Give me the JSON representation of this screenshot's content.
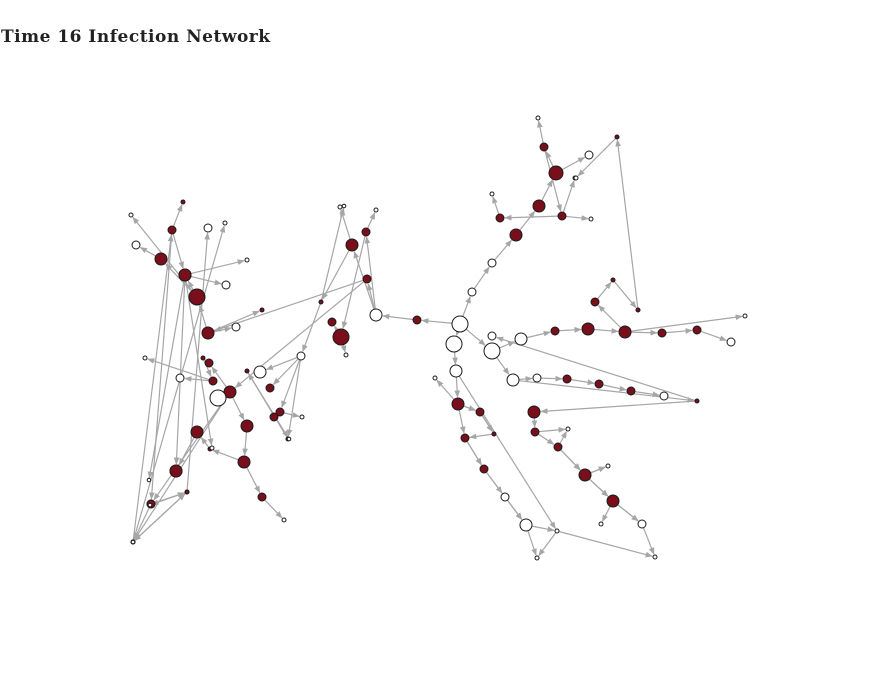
{
  "title": "Time 16 Infection Network",
  "colors": {
    "infected": "#7a0f1c",
    "susceptible": "#ffffff",
    "stroke": "#1a1a1a",
    "edge": "#a6a6a6"
  },
  "chart_data": {
    "type": "network",
    "node_states": [
      "infected",
      "susceptible"
    ],
    "edges": [
      [
        "c1",
        "c2"
      ],
      [
        "c1",
        "c3"
      ],
      [
        "c1",
        "c4"
      ],
      [
        "c1",
        "c5"
      ],
      [
        "c2",
        "L1"
      ],
      [
        "L1",
        "L2"
      ],
      [
        "L1",
        "L3"
      ],
      [
        "L1",
        "L4"
      ],
      [
        "L4",
        "L5"
      ],
      [
        "L4",
        "L6"
      ],
      [
        "L6",
        "L7"
      ],
      [
        "L6",
        "L8"
      ],
      [
        "L3",
        "L9"
      ],
      [
        "L3",
        "L10"
      ],
      [
        "L10",
        "L11"
      ],
      [
        "L10",
        "L12"
      ],
      [
        "L12",
        "L13"
      ],
      [
        "L12",
        "L14"
      ],
      [
        "L12",
        "L15"
      ],
      [
        "L15",
        "L16"
      ],
      [
        "L15",
        "L17"
      ],
      [
        "L12",
        "L18"
      ],
      [
        "L18",
        "L19"
      ],
      [
        "L19",
        "L20"
      ],
      [
        "L2",
        "L21"
      ],
      [
        "L21",
        "L22"
      ],
      [
        "L21",
        "L23"
      ],
      [
        "L21",
        "L24"
      ],
      [
        "L24",
        "L25"
      ],
      [
        "L25",
        "L26"
      ],
      [
        "L25",
        "L27"
      ],
      [
        "L24",
        "L28"
      ],
      [
        "L28",
        "L29"
      ],
      [
        "L24",
        "L30"
      ],
      [
        "L2",
        "L31"
      ],
      [
        "L31",
        "L32"
      ],
      [
        "L31",
        "L33"
      ],
      [
        "L33",
        "L34"
      ],
      [
        "L34",
        "L35"
      ],
      [
        "L35",
        "L36"
      ],
      [
        "L35",
        "L37"
      ],
      [
        "L31",
        "L38"
      ],
      [
        "L38",
        "L39"
      ],
      [
        "L39",
        "L40"
      ],
      [
        "L40",
        "L41"
      ],
      [
        "L39",
        "L42"
      ],
      [
        "L42",
        "L43"
      ],
      [
        "L43",
        "L44"
      ],
      [
        "L31",
        "L45"
      ],
      [
        "L31",
        "L46"
      ],
      [
        "L46",
        "L47"
      ],
      [
        "L47",
        "L48"
      ],
      [
        "L46",
        "L49"
      ],
      [
        "L46",
        "L50"
      ],
      [
        "L50",
        "L51"
      ],
      [
        "L50",
        "L52"
      ],
      [
        "L52",
        "L53"
      ],
      [
        "L52",
        "L54"
      ],
      [
        "L52",
        "L55"
      ],
      [
        "L50",
        "L56"
      ],
      [
        "L56",
        "L57"
      ],
      [
        "L56",
        "L58"
      ],
      [
        "L58",
        "L59"
      ],
      [
        "L58",
        "L60"
      ],
      [
        "c3",
        "R1"
      ],
      [
        "R1",
        "R2"
      ],
      [
        "R2",
        "R3"
      ],
      [
        "R3",
        "R4"
      ],
      [
        "R4",
        "R5"
      ],
      [
        "R4",
        "R6"
      ],
      [
        "R6",
        "R7"
      ],
      [
        "R6",
        "R8"
      ],
      [
        "R8",
        "R9"
      ],
      [
        "R8",
        "R10"
      ],
      [
        "R8",
        "R11"
      ],
      [
        "R11",
        "R12"
      ],
      [
        "c5",
        "R13"
      ],
      [
        "R13",
        "R14"
      ],
      [
        "R14",
        "R15"
      ],
      [
        "R15",
        "R16"
      ],
      [
        "R16",
        "R17"
      ],
      [
        "R17",
        "R18"
      ],
      [
        "R18",
        "R19"
      ],
      [
        "R16",
        "R20"
      ],
      [
        "R16",
        "R21"
      ],
      [
        "R21",
        "R22"
      ],
      [
        "R22",
        "R23"
      ],
      [
        "R23",
        "R24"
      ],
      [
        "R24",
        "R25"
      ],
      [
        "c5",
        "R26"
      ],
      [
        "R26",
        "R27"
      ],
      [
        "R27",
        "R28"
      ],
      [
        "R28",
        "R29"
      ],
      [
        "R29",
        "R30"
      ],
      [
        "R30",
        "R31"
      ],
      [
        "R26",
        "R32"
      ],
      [
        "R32",
        "R33"
      ],
      [
        "R32",
        "R34"
      ],
      [
        "R34",
        "R35"
      ],
      [
        "R35",
        "R36"
      ],
      [
        "R36",
        "R37"
      ],
      [
        "R36",
        "R38"
      ],
      [
        "R38",
        "R39"
      ],
      [
        "R38",
        "R40"
      ],
      [
        "R40",
        "R41"
      ],
      [
        "c4",
        "R42"
      ],
      [
        "R42",
        "R43"
      ],
      [
        "R43",
        "R44"
      ],
      [
        "R43",
        "R45"
      ],
      [
        "R45",
        "R46"
      ],
      [
        "R46",
        "R47"
      ],
      [
        "R47",
        "R48"
      ],
      [
        "R48",
        "R49"
      ],
      [
        "R48",
        "R50"
      ],
      [
        "R42",
        "R51"
      ],
      [
        "R51",
        "R52"
      ],
      [
        "R51",
        "R53"
      ]
    ],
    "nodes": [
      {
        "id": "c1",
        "state": "susceptible"
      },
      {
        "id": "c2",
        "state": "infected"
      },
      {
        "id": "c3",
        "state": "susceptible"
      },
      {
        "id": "c4",
        "state": "susceptible"
      },
      {
        "id": "c5",
        "state": "susceptible"
      },
      {
        "id": "L1",
        "state": "susceptible"
      },
      {
        "id": "L2",
        "state": "infected"
      },
      {
        "id": "L3",
        "state": "infected"
      },
      {
        "id": "L4",
        "state": "infected"
      },
      {
        "id": "L5",
        "state": "susceptible"
      },
      {
        "id": "L6",
        "state": "infected"
      },
      {
        "id": "L7",
        "state": "susceptible"
      },
      {
        "id": "L8",
        "state": "infected"
      },
      {
        "id": "L9",
        "state": "susceptible"
      },
      {
        "id": "L10",
        "state": "infected"
      },
      {
        "id": "L11",
        "state": "susceptible"
      },
      {
        "id": "L12",
        "state": "susceptible"
      },
      {
        "id": "L13",
        "state": "susceptible"
      },
      {
        "id": "L14",
        "state": "infected"
      },
      {
        "id": "L15",
        "state": "infected"
      },
      {
        "id": "L16",
        "state": "susceptible"
      },
      {
        "id": "L17",
        "state": "infected"
      },
      {
        "id": "L18",
        "state": "infected"
      },
      {
        "id": "L19",
        "state": "infected"
      },
      {
        "id": "L20",
        "state": "susceptible"
      },
      {
        "id": "L21",
        "state": "infected"
      },
      {
        "id": "L22",
        "state": "susceptible"
      },
      {
        "id": "L23",
        "state": "infected"
      },
      {
        "id": "L24",
        "state": "infected"
      },
      {
        "id": "L25",
        "state": "infected"
      },
      {
        "id": "L26",
        "state": "susceptible"
      },
      {
        "id": "L27",
        "state": "susceptible"
      },
      {
        "id": "L28",
        "state": "infected"
      },
      {
        "id": "L29",
        "state": "susceptible"
      },
      {
        "id": "L30",
        "state": "susceptible"
      },
      {
        "id": "L31",
        "state": "infected"
      },
      {
        "id": "L32",
        "state": "susceptible"
      },
      {
        "id": "L33",
        "state": "infected"
      },
      {
        "id": "L34",
        "state": "infected"
      },
      {
        "id": "L35",
        "state": "infected"
      },
      {
        "id": "L36",
        "state": "susceptible"
      },
      {
        "id": "L37",
        "state": "susceptible"
      },
      {
        "id": "L38",
        "state": "infected"
      },
      {
        "id": "L39",
        "state": "infected"
      },
      {
        "id": "L40",
        "state": "infected"
      },
      {
        "id": "L41",
        "state": "susceptible"
      },
      {
        "id": "L42",
        "state": "infected"
      },
      {
        "id": "L43",
        "state": "infected"
      },
      {
        "id": "L44",
        "state": "susceptible"
      },
      {
        "id": "L45",
        "state": "susceptible"
      },
      {
        "id": "L46",
        "state": "infected"
      },
      {
        "id": "L47",
        "state": "infected"
      },
      {
        "id": "L48",
        "state": "susceptible"
      },
      {
        "id": "L49",
        "state": "susceptible"
      },
      {
        "id": "L50",
        "state": "infected"
      },
      {
        "id": "L51",
        "state": "infected"
      },
      {
        "id": "L52",
        "state": "infected"
      },
      {
        "id": "L53",
        "state": "susceptible"
      },
      {
        "id": "L54",
        "state": "susceptible"
      },
      {
        "id": "L55",
        "state": "infected"
      },
      {
        "id": "L56",
        "state": "infected"
      },
      {
        "id": "L57",
        "state": "susceptible"
      },
      {
        "id": "L58",
        "state": "infected"
      },
      {
        "id": "L59",
        "state": "susceptible"
      },
      {
        "id": "L60",
        "state": "susceptible"
      },
      {
        "id": "R1",
        "state": "susceptible"
      },
      {
        "id": "R2",
        "state": "infected"
      },
      {
        "id": "R3",
        "state": "infected"
      },
      {
        "id": "R4",
        "state": "infected"
      },
      {
        "id": "R5",
        "state": "susceptible"
      },
      {
        "id": "R6",
        "state": "infected"
      },
      {
        "id": "R7",
        "state": "susceptible"
      },
      {
        "id": "R8",
        "state": "infected"
      },
      {
        "id": "R9",
        "state": "susceptible"
      },
      {
        "id": "R10",
        "state": "susceptible"
      },
      {
        "id": "R11",
        "state": "infected"
      },
      {
        "id": "R12",
        "state": "susceptible"
      },
      {
        "id": "R13",
        "state": "susceptible"
      },
      {
        "id": "R14",
        "state": "infected"
      },
      {
        "id": "R15",
        "state": "infected"
      },
      {
        "id": "R16",
        "state": "infected"
      },
      {
        "id": "R17",
        "state": "infected"
      },
      {
        "id": "R18",
        "state": "infected"
      },
      {
        "id": "R19",
        "state": "susceptible"
      },
      {
        "id": "R20",
        "state": "susceptible"
      },
      {
        "id": "R21",
        "state": "infected"
      },
      {
        "id": "R22",
        "state": "infected"
      },
      {
        "id": "R23",
        "state": "infected"
      },
      {
        "id": "R24",
        "state": "infected"
      },
      {
        "id": "R25",
        "state": "susceptible"
      },
      {
        "id": "R26",
        "state": "susceptible"
      },
      {
        "id": "R27",
        "state": "susceptible"
      },
      {
        "id": "R28",
        "state": "infected"
      },
      {
        "id": "R29",
        "state": "infected"
      },
      {
        "id": "R30",
        "state": "infected"
      },
      {
        "id": "R31",
        "state": "susceptible"
      },
      {
        "id": "R32",
        "state": "infected"
      },
      {
        "id": "R33",
        "state": "susceptible"
      },
      {
        "id": "R34",
        "state": "infected"
      },
      {
        "id": "R35",
        "state": "infected"
      },
      {
        "id": "R36",
        "state": "infected"
      },
      {
        "id": "R37",
        "state": "susceptible"
      },
      {
        "id": "R38",
        "state": "infected"
      },
      {
        "id": "R39",
        "state": "susceptible"
      },
      {
        "id": "R40",
        "state": "infected"
      },
      {
        "id": "R41",
        "state": "susceptible"
      },
      {
        "id": "R42",
        "state": "susceptible"
      },
      {
        "id": "R43",
        "state": "infected"
      },
      {
        "id": "R44",
        "state": "susceptible"
      },
      {
        "id": "R45",
        "state": "infected"
      },
      {
        "id": "R46",
        "state": "infected"
      },
      {
        "id": "R47",
        "state": "infected"
      },
      {
        "id": "R48",
        "state": "infected"
      },
      {
        "id": "R49",
        "state": "susceptible"
      },
      {
        "id": "R50",
        "state": "susceptible"
      },
      {
        "id": "R51",
        "state": "susceptible"
      },
      {
        "id": "R52",
        "state": "susceptible"
      },
      {
        "id": "R53",
        "state": "susceptible"
      }
    ]
  }
}
